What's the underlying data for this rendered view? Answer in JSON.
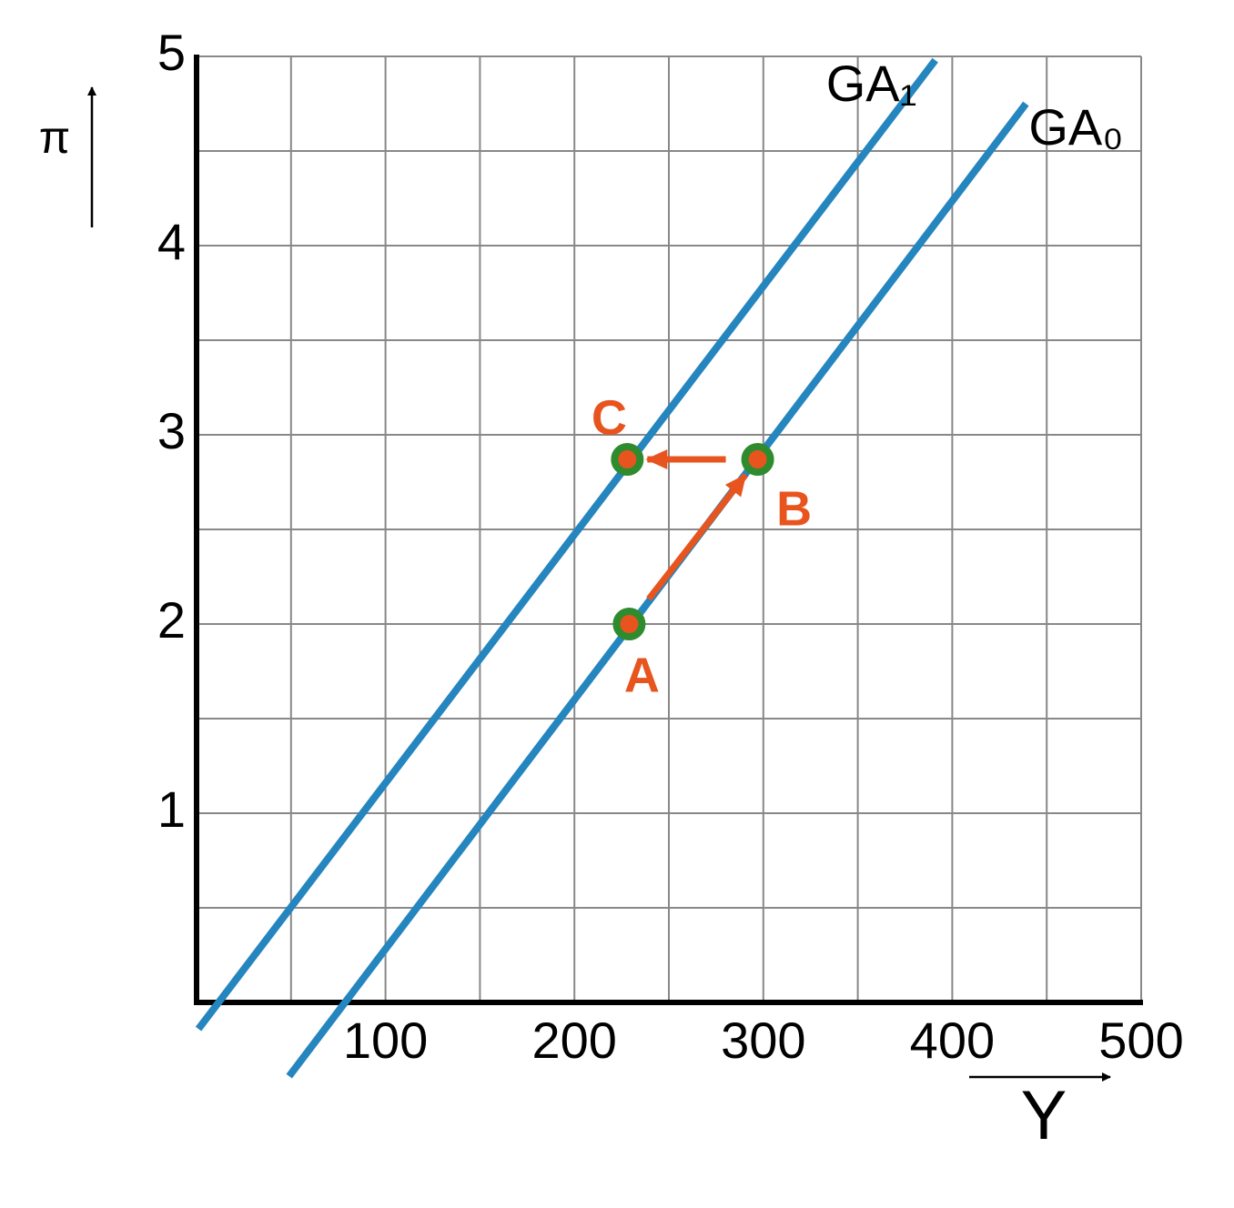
{
  "chart_data": {
    "type": "line",
    "x_label": "Y",
    "y_label": "π",
    "xlim": [
      0,
      500
    ],
    "ylim": [
      0,
      5
    ],
    "xticks": [
      100,
      200,
      300,
      400,
      500
    ],
    "yticks": [
      1,
      2,
      3,
      4,
      5
    ],
    "minor_xticks": [
      50,
      150,
      250,
      350,
      450
    ],
    "minor_yticks": [
      0.5,
      1.5,
      2.5,
      3.5,
      4.5
    ],
    "grid": true,
    "series": [
      {
        "name": "GA₁",
        "color": "#2585be",
        "x": [
          1,
          391
        ],
        "values": [
          -0.14,
          4.98
        ]
      },
      {
        "name": "GA₀",
        "color": "#2585be",
        "x": [
          49,
          439
        ],
        "values": [
          -0.39,
          4.75
        ]
      }
    ],
    "points": {
      "labels": [
        "A",
        "B",
        "C"
      ],
      "x": [
        229,
        297,
        228
      ],
      "values": [
        2,
        2.87,
        2.87
      ],
      "ring_color": "#2e8b2e",
      "color": "#e8541e"
    }
  }
}
